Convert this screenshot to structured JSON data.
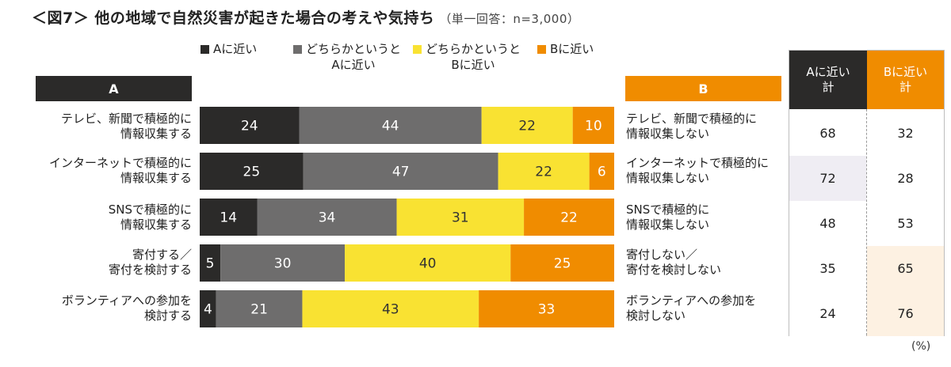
{
  "title": "＜図7＞ 他の地域で自然災害が起きた場合の考えや気持ち",
  "title_note": "（単一回答：n=3,000）",
  "legend": [
    {
      "label": "Aに近い",
      "color": "#2b2a29"
    },
    {
      "label": "どちらかというと\nAに近い",
      "color": "#6e6d6d"
    },
    {
      "label": "どちらかというと\nBに近い",
      "color": "#f9e232"
    },
    {
      "label": "Bに近い",
      "color": "#f08c00"
    }
  ],
  "header_a": "A",
  "header_b": "B",
  "summary_headers": {
    "a": "Aに近い\n計",
    "b": "Bに近い\n計"
  },
  "unit": "(%)",
  "chart_data": {
    "type": "bar",
    "orientation": "horizontal",
    "stacked": true,
    "percent": true,
    "categories": [
      "テレビ、新聞で積極的に\n情報収集する",
      "インターネットで積極的に\n情報収集する",
      "SNSで積極的に\n情報収集する",
      "寄付する／\n寄付を検討する",
      "ボランティアへの参加を\n検討する"
    ],
    "categories_b": [
      "テレビ、新聞で積極的に\n情報収集しない",
      "インターネットで積極的に\n情報収集しない",
      "SNSで積極的に\n情報収集しない",
      "寄付しない／\n寄付を検討しない",
      "ボランティアへの参加を\n検討しない"
    ],
    "series": [
      {
        "name": "Aに近い",
        "color": "#2b2a29",
        "values": [
          24,
          25,
          14,
          5,
          4
        ]
      },
      {
        "name": "どちらかというとAに近い",
        "color": "#6e6d6d",
        "values": [
          44,
          47,
          34,
          30,
          21
        ]
      },
      {
        "name": "どちらかというとBに近い",
        "color": "#f9e232",
        "values": [
          22,
          22,
          31,
          40,
          43
        ]
      },
      {
        "name": "Bに近い",
        "color": "#f08c00",
        "values": [
          10,
          6,
          22,
          25,
          33
        ]
      }
    ],
    "a_total": [
      68,
      72,
      48,
      35,
      24
    ],
    "b_total": [
      32,
      28,
      53,
      65,
      76
    ],
    "grid": false
  }
}
